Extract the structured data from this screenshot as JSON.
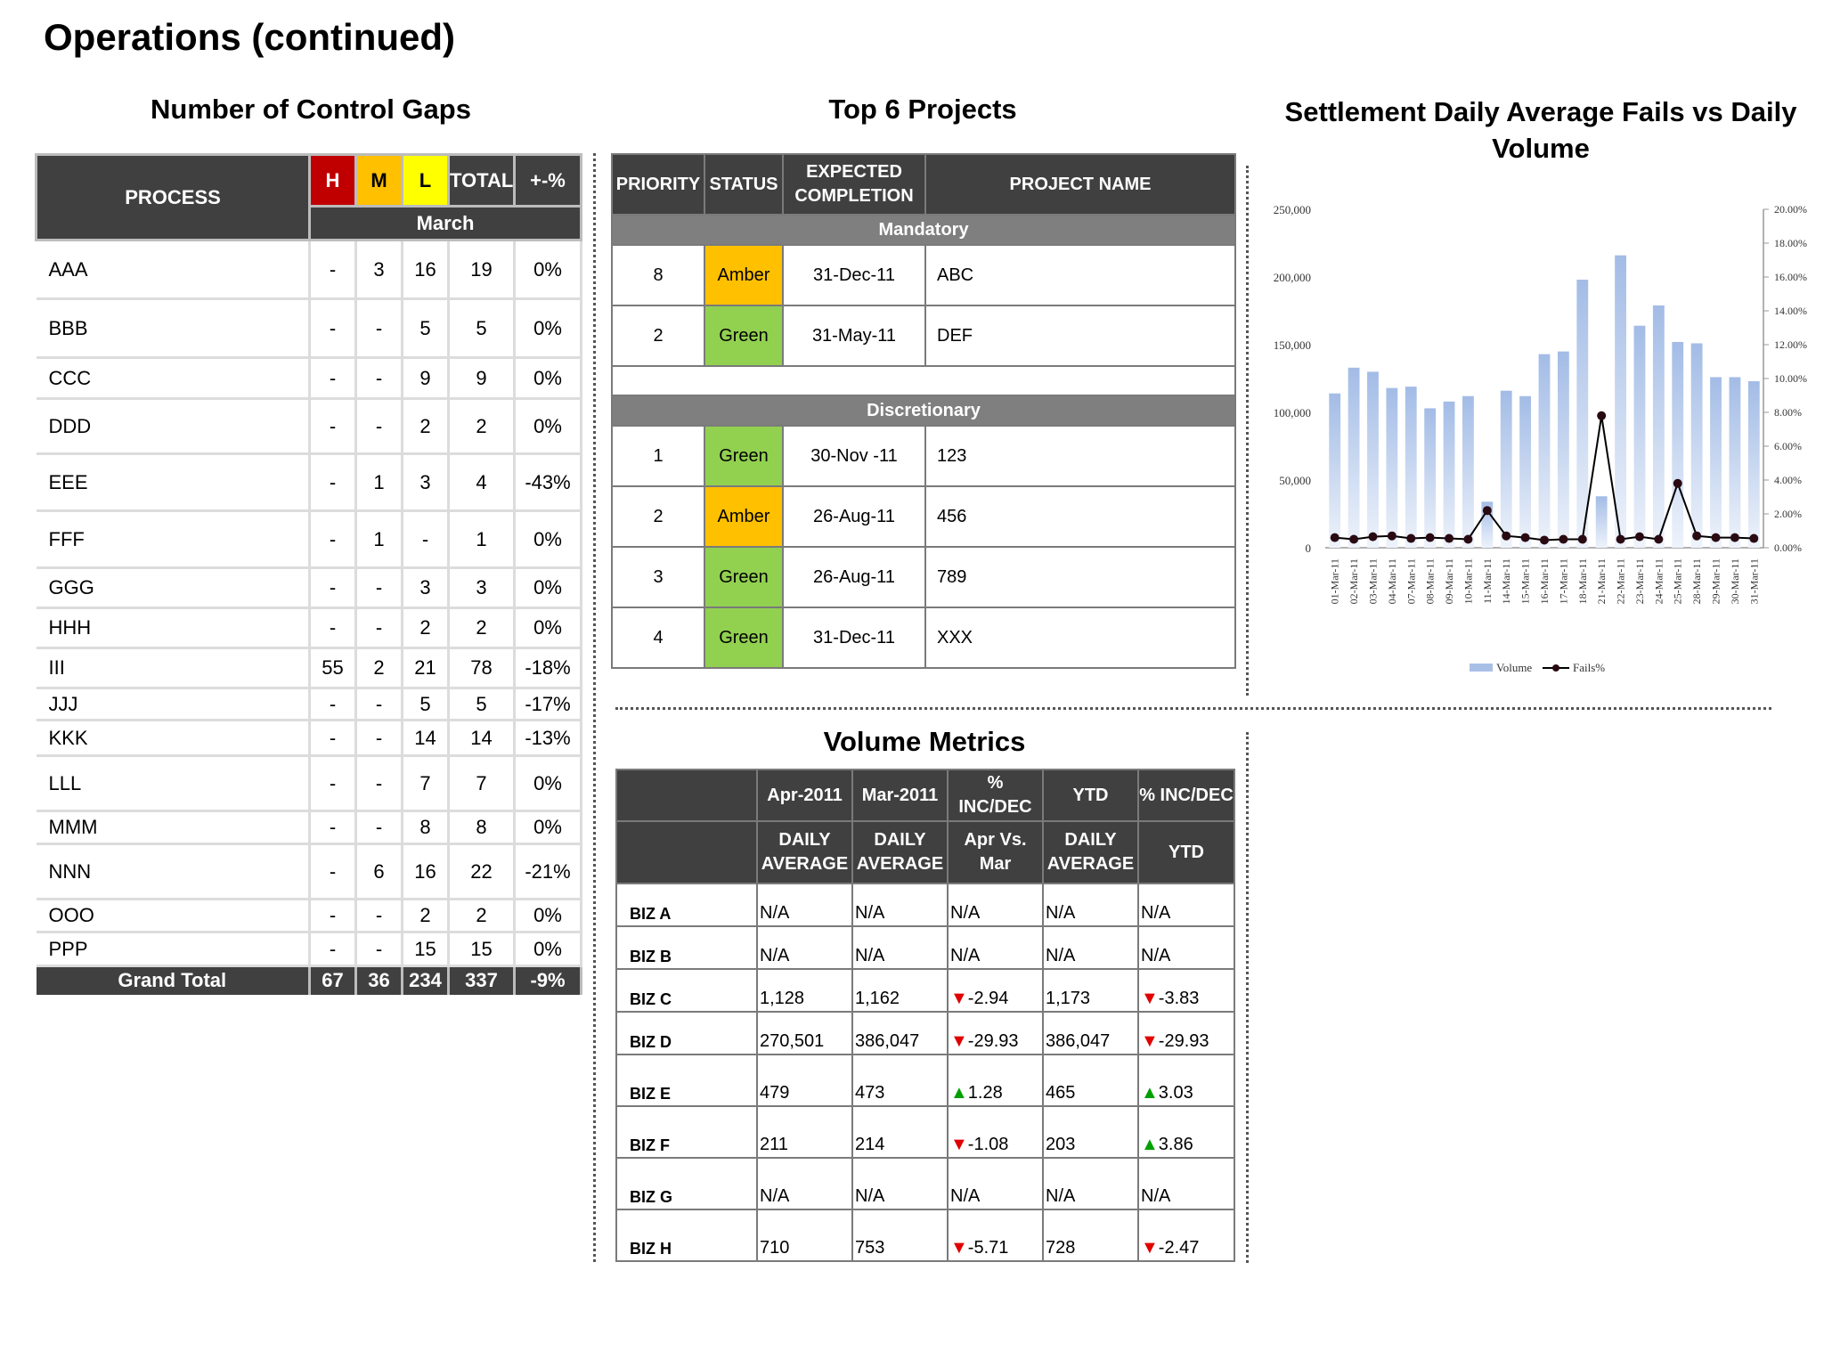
{
  "page_title": "Operations (continued)",
  "gaps": {
    "title": "Number of Control Gaps",
    "headers": {
      "process": "PROCESS",
      "h": "H",
      "m": "M",
      "l": "L",
      "total": "TOTAL",
      "pct": "+-%",
      "month": "March"
    },
    "rows": [
      [
        "AAA",
        "-",
        "3",
        "16",
        "19",
        "0%"
      ],
      [
        "BBB",
        "-",
        "-",
        "5",
        "5",
        "0%"
      ],
      [
        "CCC",
        "-",
        "-",
        "9",
        "9",
        "0%"
      ],
      [
        "DDD",
        "-",
        "-",
        "2",
        "2",
        "0%"
      ],
      [
        "EEE",
        "-",
        "1",
        "3",
        "4",
        "-43%"
      ],
      [
        "FFF",
        "-",
        "1",
        "-",
        "1",
        "0%"
      ],
      [
        "GGG",
        "-",
        "-",
        "3",
        "3",
        "0%"
      ],
      [
        "HHH",
        "-",
        "-",
        "2",
        "2",
        "0%"
      ],
      [
        "III",
        "55",
        "2",
        "21",
        "78",
        "-18%"
      ],
      [
        "JJJ",
        "-",
        "-",
        "5",
        "5",
        "-17%"
      ],
      [
        "KKK",
        "-",
        "-",
        "14",
        "14",
        "-13%"
      ],
      [
        "LLL",
        "-",
        "-",
        "7",
        "7",
        "0%"
      ],
      [
        "MMM",
        "-",
        "-",
        "8",
        "8",
        "0%"
      ],
      [
        "NNN",
        "-",
        "6",
        "16",
        "22",
        "-21%"
      ],
      [
        "OOO",
        "-",
        "-",
        "2",
        "2",
        "0%"
      ],
      [
        "PPP",
        "-",
        "-",
        "15",
        "15",
        "0%"
      ]
    ],
    "grand_total": [
      "Grand Total",
      "67",
      "36",
      "234",
      "337",
      "-9%"
    ]
  },
  "projects": {
    "title": "Top 6 Projects",
    "headers": {
      "priority": "PRIORITY",
      "status": "STATUS",
      "expected": "EXPECTED COMPLETION",
      "name": "PROJECT NAME"
    },
    "mandatory_label": "Mandatory",
    "mandatory": [
      {
        "priority": "8",
        "status": "Amber",
        "date": "31-Dec-11",
        "name": "ABC"
      },
      {
        "priority": "2",
        "status": "Green",
        "date": "31-May-11",
        "name": "DEF"
      }
    ],
    "discretionary_label": "Discretionary",
    "discretionary": [
      {
        "priority": "1",
        "status": "Green",
        "date": "30-Nov -11",
        "name": "123"
      },
      {
        "priority": "2",
        "status": "Amber",
        "date": "26-Aug-11",
        "name": "456"
      },
      {
        "priority": "3",
        "status": "Green",
        "date": "26-Aug-11",
        "name": "789"
      },
      {
        "priority": "4",
        "status": "Green",
        "date": "31-Dec-11",
        "name": "XXX"
      }
    ],
    "colors": {
      "Amber": "#ffc000",
      "Green": "#92d050"
    }
  },
  "chart_title": "Settlement Daily Average Fails vs Daily Volume",
  "chart_data": {
    "type": "bar",
    "categories": [
      "01-Mar-11",
      "02-Mar-11",
      "03-Mar-11",
      "04-Mar-11",
      "07-Mar-11",
      "08-Mar-11",
      "09-Mar-11",
      "10-Mar-11",
      "11-Mar-11",
      "14-Mar-11",
      "15-Mar-11",
      "16-Mar-11",
      "17-Mar-11",
      "18-Mar-11",
      "21-Mar-11",
      "22-Mar-11",
      "23-Mar-11",
      "24-Mar-11",
      "25-Mar-11",
      "28-Mar-11",
      "29-Mar-11",
      "30-Mar-11",
      "31-Mar-11"
    ],
    "series": [
      {
        "name": "Volume",
        "type": "bar",
        "axis": "left",
        "color": "#a9c0e6",
        "values": [
          114000,
          133000,
          130000,
          118000,
          119000,
          103000,
          108000,
          112000,
          34000,
          116000,
          112000,
          143000,
          145000,
          198000,
          38000,
          216000,
          164000,
          179000,
          152000,
          151000,
          126000,
          126000,
          123000
        ]
      },
      {
        "name": "Fails%",
        "type": "line",
        "axis": "right",
        "color": "#000000",
        "values": [
          0.6,
          0.5,
          0.65,
          0.7,
          0.55,
          0.6,
          0.55,
          0.5,
          2.2,
          0.7,
          0.6,
          0.45,
          0.5,
          0.5,
          7.8,
          0.5,
          0.65,
          0.5,
          3.8,
          0.7,
          0.6,
          0.6,
          0.55
        ]
      }
    ],
    "y_left": {
      "min": 0,
      "max": 250000,
      "ticks": [
        "0",
        "50,000",
        "100,000",
        "150,000",
        "200,000",
        "250,000"
      ]
    },
    "y_right": {
      "min": 0,
      "max": 20,
      "ticks": [
        "0.00%",
        "2.00%",
        "4.00%",
        "6.00%",
        "8.00%",
        "10.00%",
        "12.00%",
        "14.00%",
        "16.00%",
        "18.00%",
        "20.00%"
      ]
    },
    "legend": [
      "Volume",
      "Fails%"
    ],
    "legend_position": "bottom"
  },
  "volume": {
    "title": "Volume Metrics",
    "header1": [
      "Apr-2011",
      "Mar-2011",
      "% INC/DEC",
      "YTD",
      "% INC/DEC"
    ],
    "header2": [
      "DAILY AVERAGE",
      "DAILY AVERAGE",
      "Apr Vs. Mar",
      "DAILY AVERAGE",
      "YTD"
    ],
    "rows": [
      {
        "biz": "BIZ A",
        "apr": "N/A",
        "mar": "N/A",
        "chg": "N/A",
        "chg_dir": "",
        "ytd": "N/A",
        "ytd_chg": "N/A",
        "ytd_dir": ""
      },
      {
        "biz": "BIZ B",
        "apr": "N/A",
        "mar": "N/A",
        "chg": "N/A",
        "chg_dir": "",
        "ytd": "N/A",
        "ytd_chg": "N/A",
        "ytd_dir": ""
      },
      {
        "biz": "BIZ C",
        "apr": "1,128",
        "mar": "1,162",
        "chg": "-2.94",
        "chg_dir": "down",
        "ytd": "1,173",
        "ytd_chg": "-3.83",
        "ytd_dir": "down"
      },
      {
        "biz": "BIZ D",
        "apr": "270,501",
        "mar": "386,047",
        "chg": "-29.93",
        "chg_dir": "down",
        "ytd": "386,047",
        "ytd_chg": "-29.93",
        "ytd_dir": "down"
      },
      {
        "biz": "BIZ E",
        "apr": "479",
        "mar": "473",
        "chg": "1.28",
        "chg_dir": "up",
        "ytd": "465",
        "ytd_chg": "3.03",
        "ytd_dir": "up"
      },
      {
        "biz": "BIZ F",
        "apr": "211",
        "mar": "214",
        "chg": "-1.08",
        "chg_dir": "down",
        "ytd": "203",
        "ytd_chg": "3.86",
        "ytd_dir": "up"
      },
      {
        "biz": "BIZ G",
        "apr": "N/A",
        "mar": "N/A",
        "chg": "N/A",
        "chg_dir": "",
        "ytd": "N/A",
        "ytd_chg": "N/A",
        "ytd_dir": ""
      },
      {
        "biz": "BIZ H",
        "apr": "710",
        "mar": "753",
        "chg": "-5.71",
        "chg_dir": "down",
        "ytd": "728",
        "ytd_chg": "-2.47",
        "ytd_dir": "down"
      }
    ]
  }
}
